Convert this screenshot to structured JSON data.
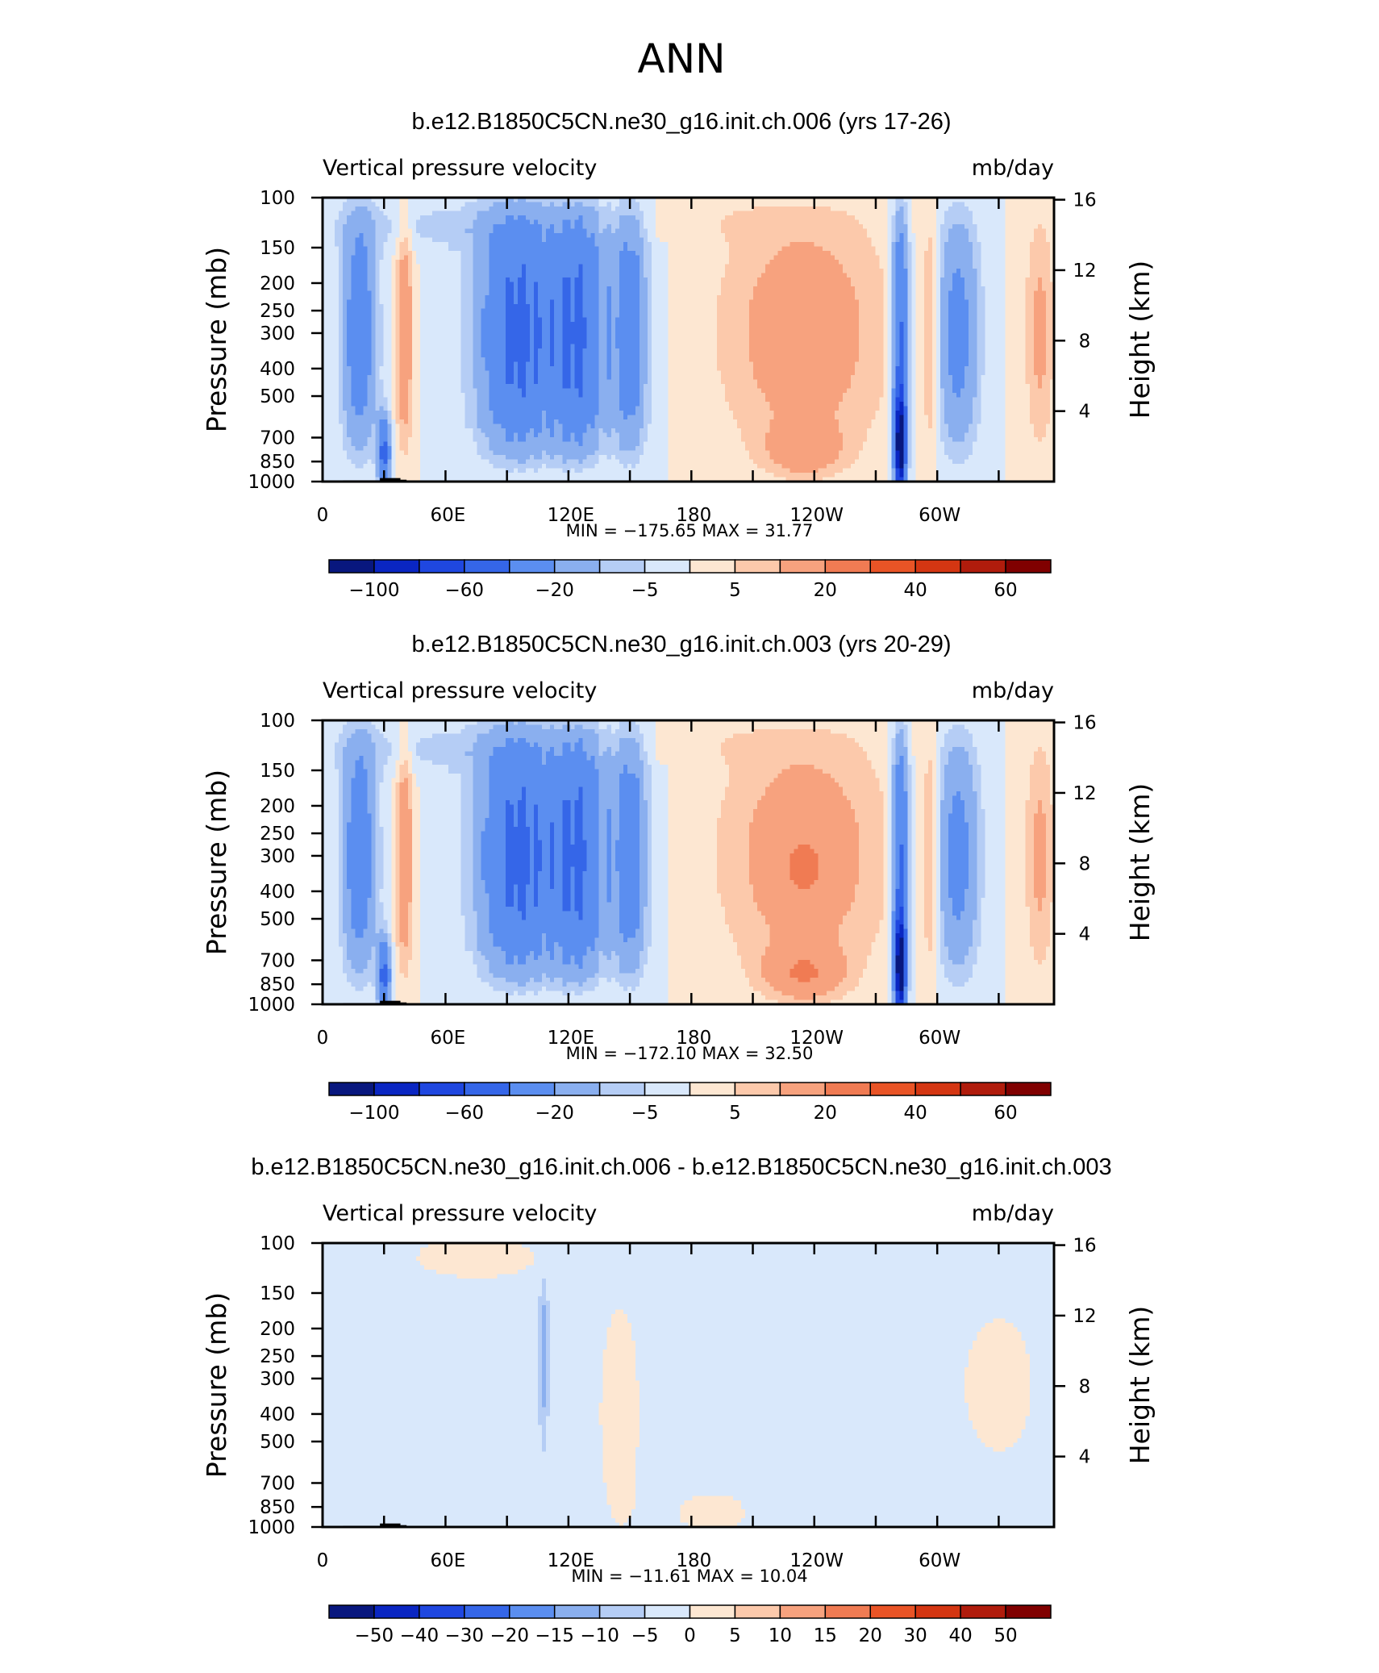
{
  "page_title": "ANN",
  "colors": {
    "ramp": [
      "#08177e",
      "#0a26c2",
      "#1f47e0",
      "#3566e8",
      "#5b8ef0",
      "#8aafef",
      "#b5cdf5",
      "#d9e8fb",
      "#fde7d2",
      "#fcc9ab",
      "#f7a27e",
      "#f07b53",
      "#e95426",
      "#d43612",
      "#b01c0c",
      "#800000"
    ]
  },
  "panels": [
    {
      "title": "b.e12.B1850C5CN.ne30_g16.init.ch.006 (yrs 17-26)",
      "left_label": "Vertical pressure velocity",
      "right_label": "mb/day",
      "min_max": "MIN = −175.65   MAX =   31.77",
      "colorbar_labels": [
        "−100",
        "−60",
        "−20",
        "−5",
        "5",
        "20",
        "40",
        "60"
      ],
      "kind": "mean1"
    },
    {
      "title": "b.e12.B1850C5CN.ne30_g16.init.ch.003 (yrs 20-29)",
      "left_label": "Vertical pressure velocity",
      "right_label": "mb/day",
      "min_max": "MIN = −172.10   MAX =   32.50",
      "colorbar_labels": [
        "−100",
        "−60",
        "−20",
        "−5",
        "5",
        "20",
        "40",
        "60"
      ],
      "kind": "mean2"
    },
    {
      "title": "b.e12.B1850C5CN.ne30_g16.init.ch.006 - b.e12.B1850C5CN.ne30_g16.init.ch.003",
      "left_label": "Vertical pressure velocity",
      "right_label": "mb/day",
      "min_max": "MIN = −11.61   MAX =   10.04",
      "colorbar_labels": [
        "−50",
        "−40",
        "−30",
        "−20",
        "−15",
        "−10",
        "−5",
        "0",
        "5",
        "10",
        "15",
        "20",
        "30",
        "40",
        "50"
      ],
      "kind": "diff"
    }
  ],
  "chart_data": {
    "type": "heatmap",
    "x_tick_labels": [
      "0",
      "60E",
      "120E",
      "180",
      "120W",
      "60W"
    ],
    "y_left_label": "Pressure (mb)",
    "y_left_ticks": [
      100,
      150,
      200,
      250,
      300,
      400,
      500,
      700,
      850,
      1000
    ],
    "y_right_label": "Height (km)",
    "y_right_ticks": [
      4,
      8,
      12,
      16
    ],
    "levels_mean": [
      -100,
      -80,
      -60,
      -40,
      -20,
      -10,
      -5,
      0,
      5,
      10,
      20,
      30,
      40,
      50,
      60
    ],
    "levels_diff": [
      -50,
      -40,
      -30,
      -20,
      -15,
      -10,
      -5,
      0,
      5,
      10,
      15,
      20,
      30,
      40,
      50
    ]
  }
}
